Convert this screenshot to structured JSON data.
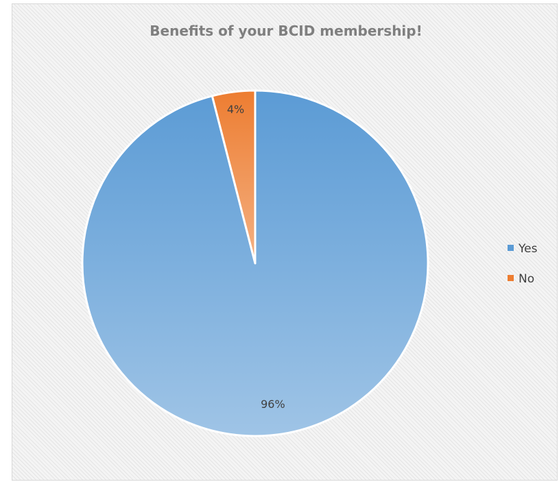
{
  "chart_data": {
    "type": "pie",
    "title": "Benefits of your BCID membership!",
    "slices": [
      {
        "name": "Yes",
        "value": 96,
        "label": "96%",
        "color": "#5b9bd5",
        "color_light": "#9fc4e6"
      },
      {
        "name": "No",
        "value": 4,
        "label": "4%",
        "color": "#ed7d31",
        "color_light": "#f4b183"
      }
    ],
    "legend": {
      "position": "right",
      "items": [
        "Yes",
        "No"
      ]
    }
  }
}
